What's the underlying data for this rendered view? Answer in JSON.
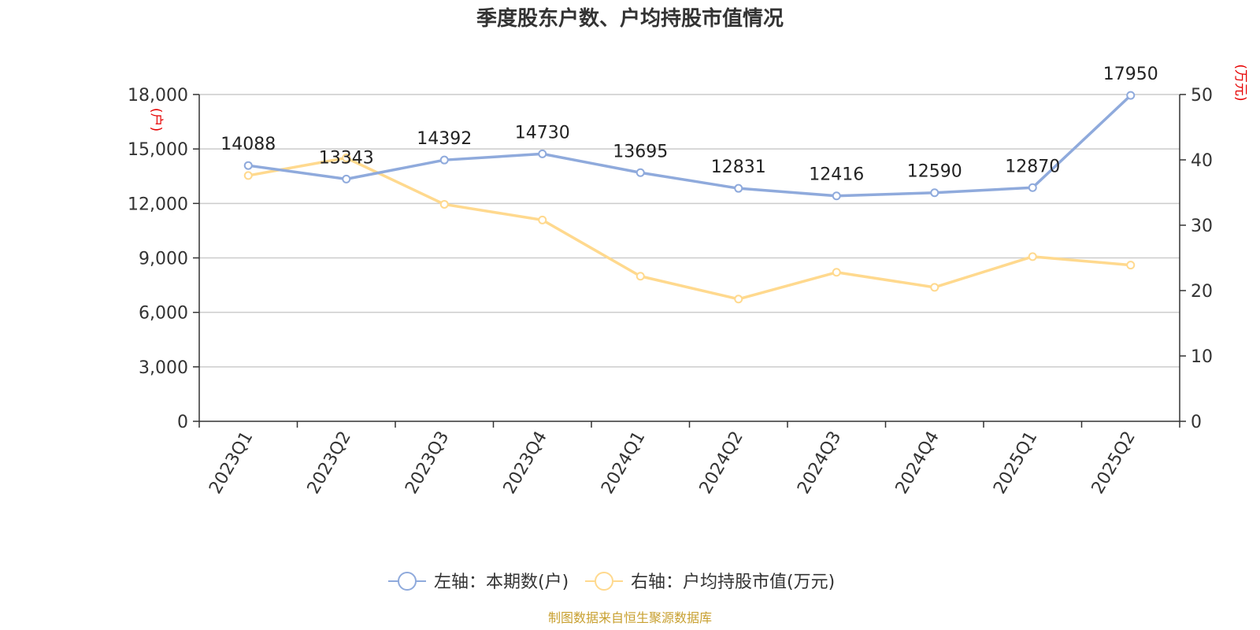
{
  "chart_data": {
    "type": "line",
    "title": "季度股东户数、户均持股市值情况",
    "categories": [
      "2023Q1",
      "2023Q2",
      "2023Q3",
      "2023Q4",
      "2024Q1",
      "2024Q2",
      "2024Q3",
      "2024Q4",
      "2025Q1",
      "2025Q2"
    ],
    "left_axis": {
      "unit_label": "(户)",
      "ylim": [
        0,
        18000
      ],
      "ticks": [
        0,
        3000,
        6000,
        9000,
        12000,
        15000,
        18000
      ],
      "tick_labels": [
        "0",
        "3,000",
        "6,000",
        "9,000",
        "12,000",
        "15,000",
        "18,000"
      ]
    },
    "right_axis": {
      "unit_label": "(万元)",
      "ylim": [
        0,
        50
      ],
      "ticks": [
        0,
        10,
        20,
        30,
        40,
        50
      ],
      "tick_labels": [
        "0",
        "10",
        "20",
        "30",
        "40",
        "50"
      ]
    },
    "series": [
      {
        "name": "左轴：本期数(户)",
        "axis": "left",
        "color": "#8faadc",
        "values": [
          14088,
          13343,
          14392,
          14730,
          13695,
          12831,
          12416,
          12590,
          12870,
          17950
        ],
        "data_labels": [
          "14088",
          "13343",
          "14392",
          "14730",
          "13695",
          "12831",
          "12416",
          "12590",
          "12870",
          "17950"
        ]
      },
      {
        "name": "右轴：户均持股市值(万元)",
        "axis": "right",
        "color": "#ffd98e",
        "values": [
          37.6,
          40.3,
          33.2,
          30.8,
          22.2,
          18.7,
          22.8,
          20.5,
          25.2,
          23.9
        ]
      }
    ],
    "grid": true,
    "legend_position": "bottom-center",
    "source": "制图数据来自恒生聚源数据库"
  }
}
